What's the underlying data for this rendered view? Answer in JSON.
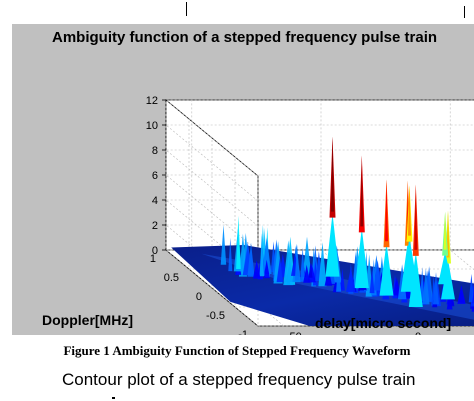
{
  "chart_data": {
    "type": "surface3d",
    "title": "Ambiguity function of a stepped frequency pulse train",
    "xlabel": "delay[micro second]",
    "ylabel": "Doppler[MHz]",
    "zlim": [
      0,
      12
    ],
    "z_ticks": [
      "0",
      "2",
      "4",
      "6",
      "8",
      "10",
      "12"
    ],
    "doppler_ticks": [
      "1",
      "0.5",
      "0",
      "-0.5",
      "-1"
    ],
    "delay_ticks": [
      "-50",
      "0",
      "50"
    ],
    "peaks": [
      {
        "delay": -8,
        "doppler": 0.3,
        "value": 11.2
      },
      {
        "delay": -2,
        "doppler": 0.0,
        "value": 10.6
      },
      {
        "delay": 4,
        "doppler": -0.2,
        "value": 9.3
      },
      {
        "delay": 10,
        "doppler": -0.5,
        "value": 9.8
      },
      {
        "delay": 14,
        "doppler": -0.1,
        "value": 8.9
      },
      {
        "delay": 20,
        "doppler": 0.2,
        "value": 7.6
      },
      {
        "delay": 26,
        "doppler": -0.3,
        "value": 7.1
      },
      {
        "delay": 32,
        "doppler": 0.1,
        "value": 5.8
      }
    ],
    "grid": true
  },
  "caption": "Figure 1 Ambiguity Function of Stepped Frequency Waveform",
  "next_figure_title": "Contour plot of a stepped frequency pulse train"
}
